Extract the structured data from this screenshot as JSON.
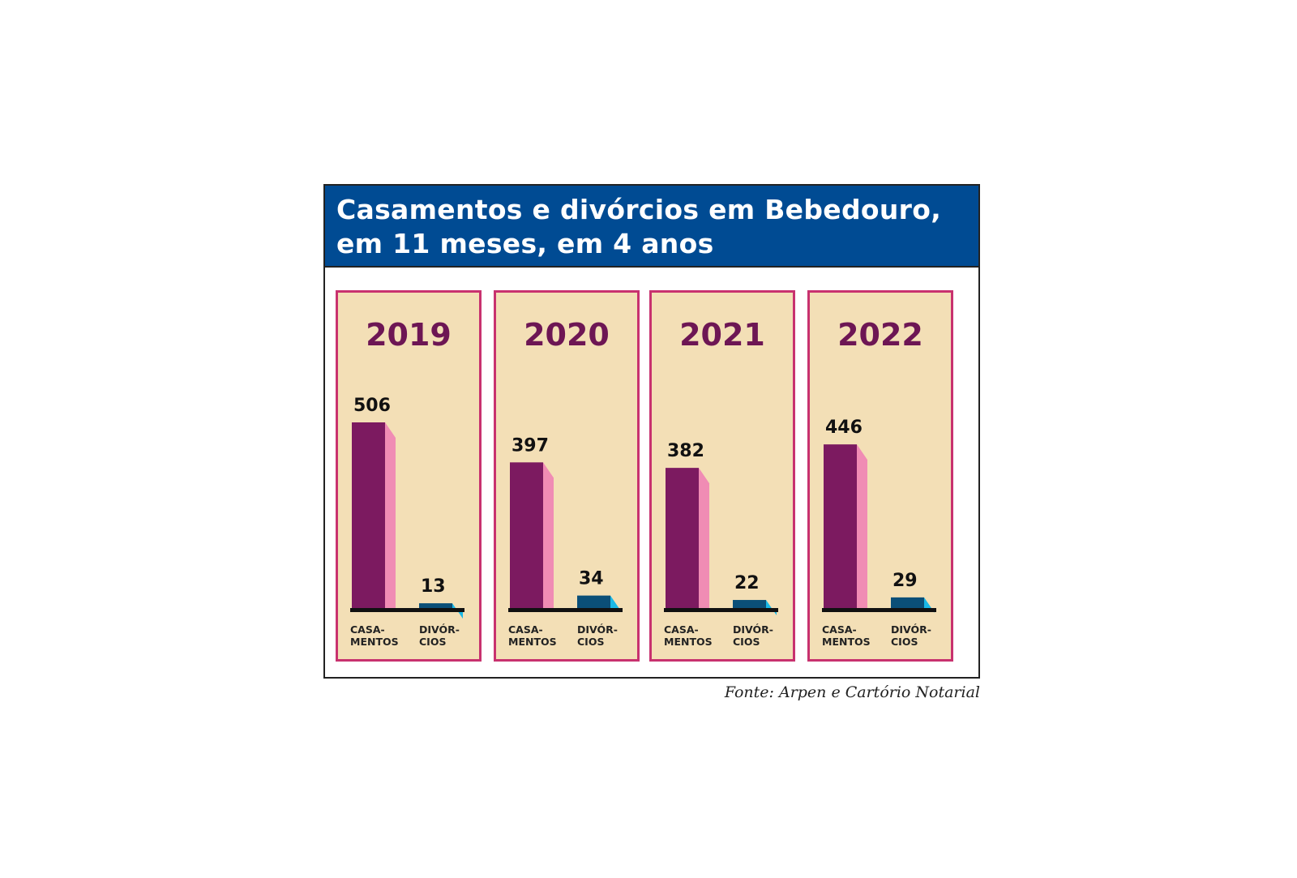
{
  "title_lines": [
    "Casamentos e divórcios em Bebedouro,",
    "em 11 meses, em 4 anos"
  ],
  "source": "Fonte: Arpen e Cartório Notarial",
  "colors": {
    "header_bg": "#004b93",
    "panel_bg": "#f3dfb6",
    "panel_border": "#c8326f",
    "year_text": "#6d1654",
    "casamentos_front": "#7c1a60",
    "casamentos_side": "#f08cb4",
    "divorcios_front": "#0b4f78",
    "divorcios_side": "#1ab8e6"
  },
  "chart_data": {
    "type": "bar",
    "categories": [
      "2019",
      "2020",
      "2021",
      "2022"
    ],
    "series_labels": [
      [
        "CASA-",
        "MENTOS"
      ],
      [
        "DIVÓR-",
        "CIOS"
      ]
    ],
    "series": [
      {
        "values": [
          506,
          397,
          382,
          446
        ]
      },
      {
        "values": [
          13,
          34,
          22,
          29
        ]
      }
    ],
    "ylim": [
      0,
      506
    ],
    "grid": false
  }
}
